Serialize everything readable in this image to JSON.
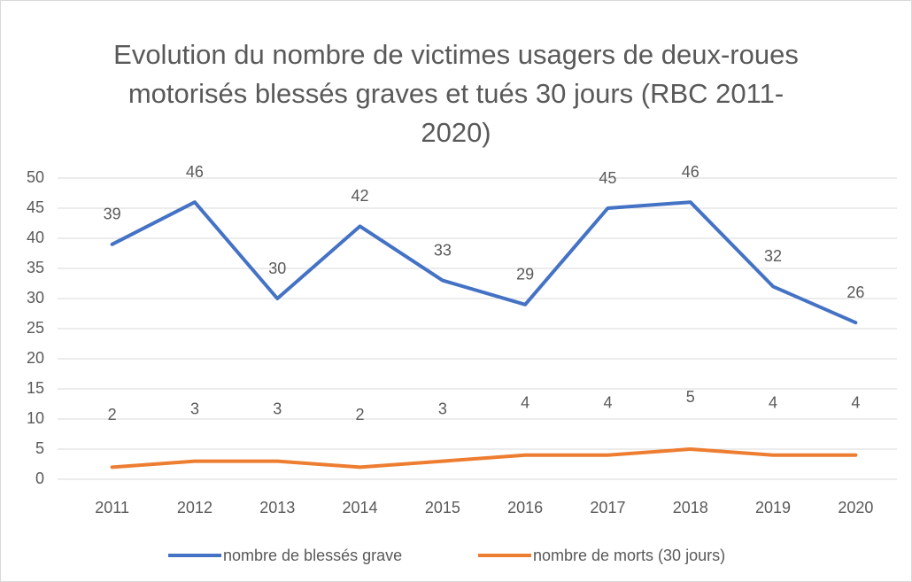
{
  "chart_data": {
    "type": "line",
    "title": "Evolution du nombre de victimes usagers de deux-roues motorisés blessés graves et tués 30 jours (RBC 2011-2020)",
    "categories": [
      "2011",
      "2012",
      "2013",
      "2014",
      "2015",
      "2016",
      "2017",
      "2018",
      "2019",
      "2020"
    ],
    "series": [
      {
        "name": "nombre de blessés grave",
        "color": "#4472c4",
        "values": [
          39,
          46,
          30,
          42,
          33,
          29,
          45,
          46,
          32,
          26
        ]
      },
      {
        "name": "nombre de morts (30 jours)",
        "color": "#ed7d31",
        "values": [
          2,
          3,
          3,
          2,
          3,
          4,
          4,
          5,
          4,
          4
        ]
      }
    ],
    "ylim": [
      0,
      50
    ],
    "yticks": [
      0,
      5,
      10,
      15,
      20,
      25,
      30,
      35,
      40,
      45,
      50
    ],
    "grid": true,
    "legend": "bottom"
  }
}
